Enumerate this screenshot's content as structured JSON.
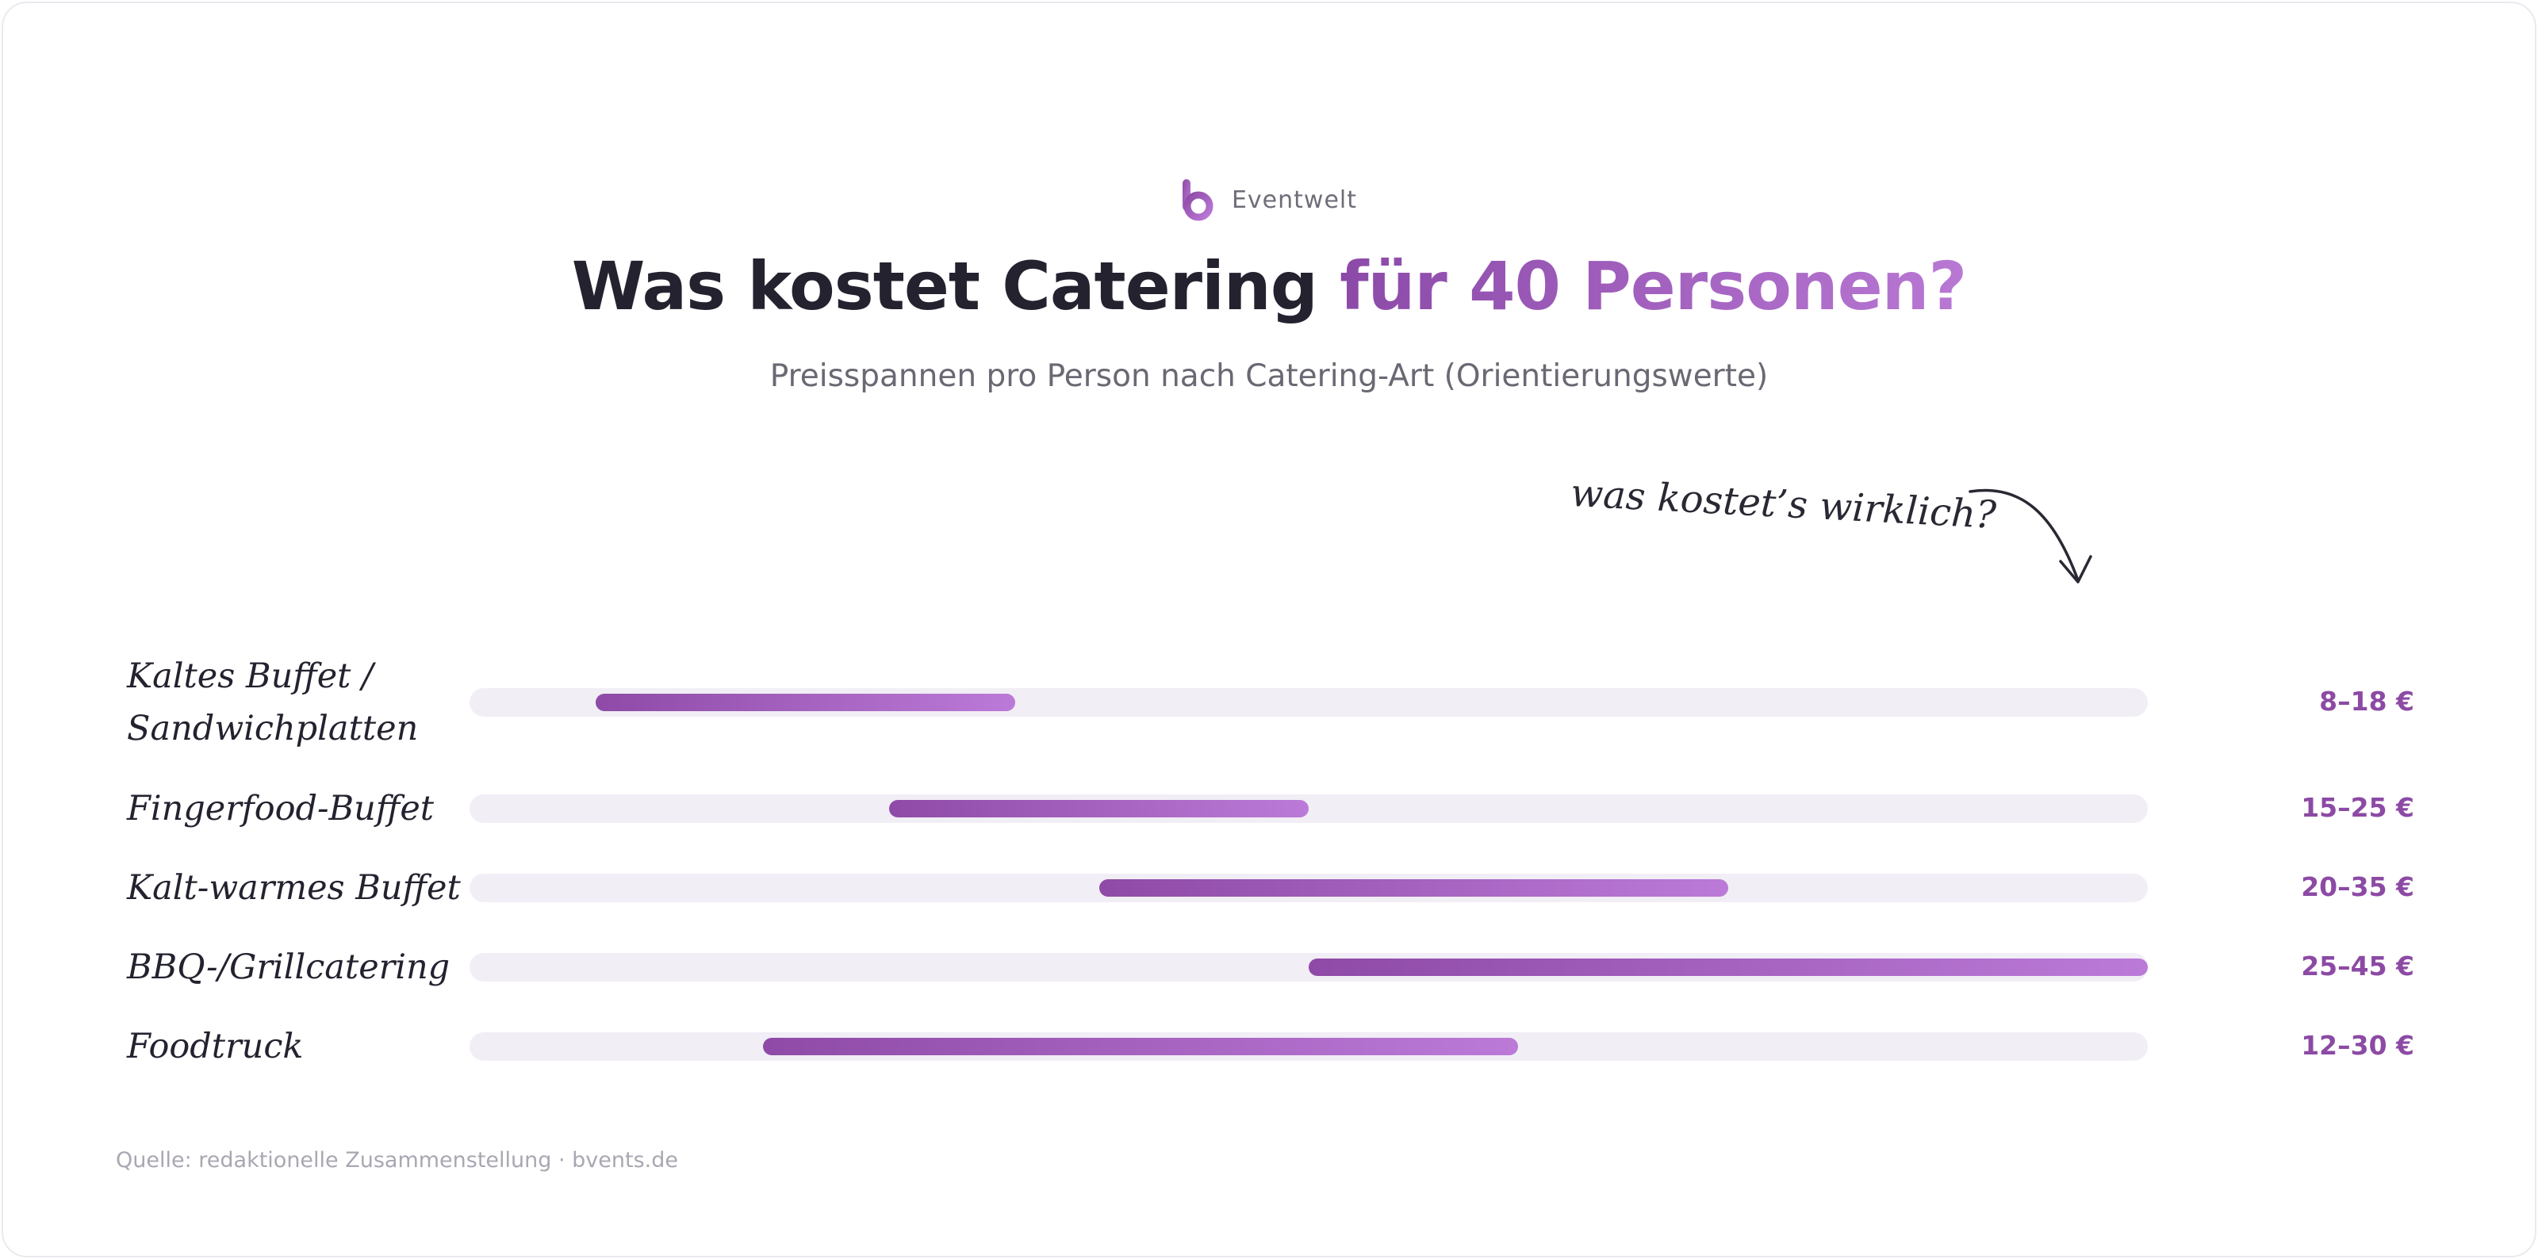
{
  "brand": {
    "name": "Eventwelt",
    "logo": "bvents-logo"
  },
  "header": {
    "title_main": "Was kostet Catering",
    "title_accent": "für 40 Personen?",
    "subtitle": "Preisspannen pro Person nach Catering-Art (Orientierungswerte)"
  },
  "annotation": {
    "text": "was kostet’s wirklich?",
    "icon": "curved-arrow-icon"
  },
  "colors": {
    "accent_start": "#8e4aa6",
    "accent_end": "#bc7ad8",
    "track": "#f1eef6",
    "value_text": "#8c4aa4"
  },
  "chart_data": {
    "type": "bar",
    "orientation": "horizontal-range",
    "unit": "€",
    "xlim": [
      5,
      45
    ],
    "categories": [
      [
        "Kaltes Buffet /",
        "Sandwichplatten"
      ],
      [
        "Fingerfood-Buffet"
      ],
      [
        "Kalt-warmes Buffet"
      ],
      [
        "BBQ-/Grillcatering"
      ],
      [
        "Foodtruck"
      ]
    ],
    "ranges": [
      [
        8,
        18
      ],
      [
        15,
        25
      ],
      [
        20,
        35
      ],
      [
        25,
        45
      ],
      [
        12,
        30
      ]
    ],
    "value_labels": [
      "8–18 €",
      "15–25 €",
      "20–35 €",
      "25–45 €",
      "12–30 €"
    ],
    "grid": false,
    "legend": "none"
  },
  "footer": {
    "source": "Quelle: redaktionelle Zusammenstellung · bvents.de"
  }
}
